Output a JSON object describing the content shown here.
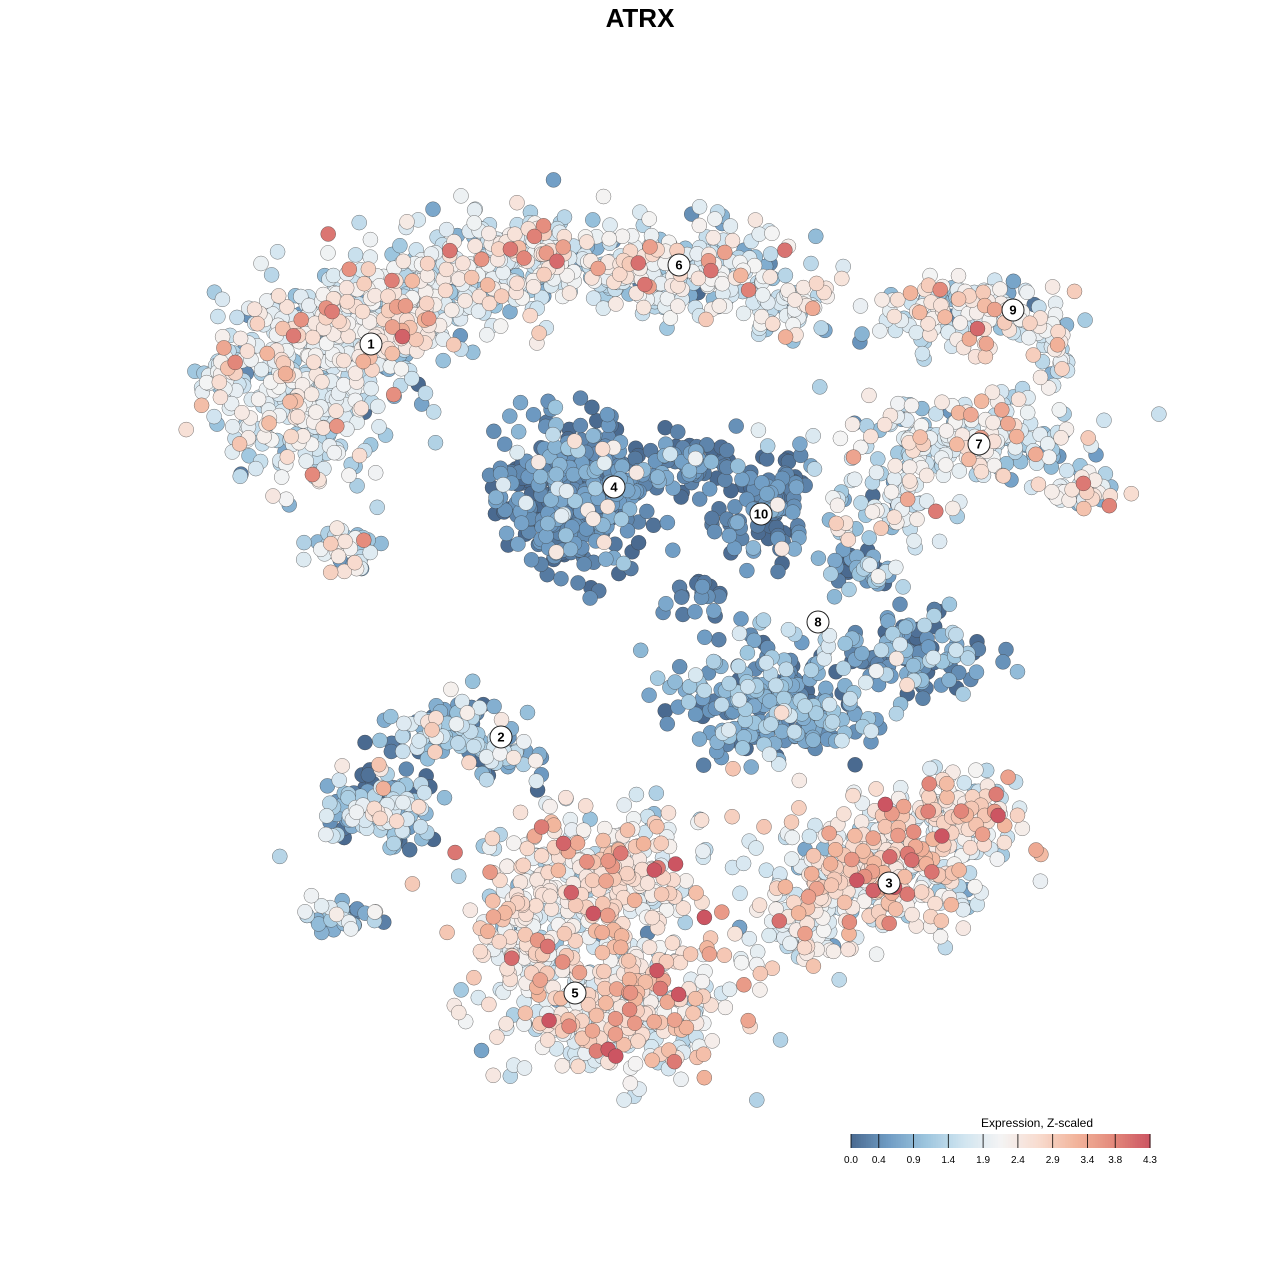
{
  "chart_data": {
    "type": "scatter",
    "title": "ATRX",
    "xlabel": "",
    "ylabel": "",
    "grid": false,
    "legend": {
      "title": "Expression, Z-scaled",
      "placement": "bottom-right",
      "range": [
        0.0,
        4.3
      ],
      "ticks": [
        "0.0",
        "0.4",
        "0.9",
        "1.4",
        "1.9",
        "2.4",
        "2.9",
        "3.4",
        "3.8",
        "4.3"
      ],
      "colors": [
        "#4a6a90",
        "#6f9cc4",
        "#9cc5de",
        "#d0e4f0",
        "#f4f4f4",
        "#f8dcd0",
        "#f2b59c",
        "#e48a7c",
        "#cc5562"
      ]
    },
    "cluster_labels": [
      "1",
      "2",
      "3",
      "4",
      "5",
      "6",
      "7",
      "8",
      "9",
      "10"
    ],
    "cluster_note": "approximate per-cluster expression summary (mean, spread) on the Z-scaled scale",
    "clusters": [
      {
        "label": "1",
        "mean_expression": 1.8,
        "spread": 0.6
      },
      {
        "label": "2",
        "mean_expression": 1.0,
        "spread": 0.7
      },
      {
        "label": "3",
        "mean_expression": 2.2,
        "spread": 0.6
      },
      {
        "label": "4",
        "mean_expression": 0.3,
        "spread": 0.3
      },
      {
        "label": "5",
        "mean_expression": 2.2,
        "spread": 0.6
      },
      {
        "label": "6",
        "mean_expression": 1.7,
        "spread": 0.6
      },
      {
        "label": "7",
        "mean_expression": 1.6,
        "spread": 0.6
      },
      {
        "label": "8",
        "mean_expression": 0.6,
        "spread": 0.5
      },
      {
        "label": "9",
        "mean_expression": 1.8,
        "spread": 0.6
      },
      {
        "label": "10",
        "mean_expression": 0.3,
        "spread": 0.3
      }
    ]
  }
}
